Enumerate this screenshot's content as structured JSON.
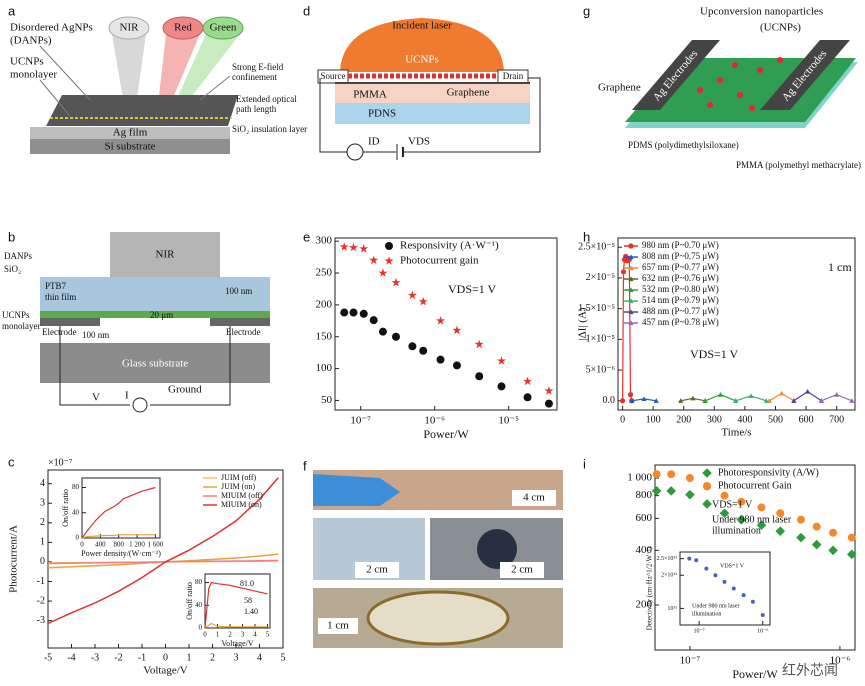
{
  "diagrams": {
    "a": {
      "label": "a",
      "texts": [
        "Disordered AgNPs",
        "(DANPs)",
        "UCNPs",
        "monolayer",
        "NIR",
        "Red",
        "Green",
        "Strong E-field",
        "confinement",
        "Extended optical",
        "path length",
        "SiO₂ insulation layer",
        "Ag film",
        "Si substrate"
      ]
    },
    "d": {
      "label": "d",
      "texts": [
        "Incident laser",
        "UCNPs",
        "Source",
        "Drain",
        "PMMA",
        "Graphene",
        "PDNS",
        "ID",
        "VDS"
      ]
    },
    "g": {
      "label": "g",
      "texts": [
        "Upconversion nanoparticles",
        "(UCNPs)",
        "Graphene",
        "Ag Electrodes",
        "Ag Electrodes",
        "PDMS (polydimethylsiloxane)",
        "PMMA (polymethyl methacrylate)"
      ]
    },
    "b": {
      "label": "b",
      "texts": [
        "NIR",
        "DANPs",
        "SiO₂",
        "PTB7",
        "thin film",
        "100 nm",
        "UCNPs",
        "monolayer",
        "20 μm",
        "Electrode",
        "100 nm",
        "Electrode",
        "Glass substrate",
        "Ground",
        "V",
        "I"
      ]
    },
    "f": {
      "label": "f",
      "texts": [
        "4 cm",
        "2 cm",
        "2 cm",
        "1 cm"
      ]
    }
  },
  "watermark": "红外芯闻",
  "chart_data": [
    {
      "type": "line",
      "label": "c",
      "xlabel": "Voltage/V",
      "ylabel": "Photocurrent/A",
      "y_offset_label": "×10⁻⁷",
      "xlim": [
        -5,
        5
      ],
      "xticks": [
        -5,
        -4,
        -3,
        -2,
        -1,
        0,
        1,
        2,
        3,
        4,
        5
      ],
      "ylim": [
        -4.4,
        4.7
      ],
      "yticks": [
        -3,
        -2,
        -1,
        0,
        1,
        2,
        3,
        4
      ],
      "legend": "upper right",
      "x": [
        -5,
        -4,
        -3,
        -2,
        -1,
        0,
        1,
        2,
        3,
        4,
        4.8
      ],
      "series": [
        {
          "name": "JUIM (off)",
          "color": "#f7c16b",
          "values": [
            -0.05,
            -0.04,
            -0.03,
            -0.02,
            -0.01,
            0,
            0.01,
            0.02,
            0.03,
            0.04,
            0.05
          ]
        },
        {
          "name": "JUIM (on)",
          "color": "#e8a33a",
          "values": [
            -0.3,
            -0.25,
            -0.2,
            -0.14,
            -0.07,
            0,
            0.06,
            0.13,
            0.2,
            0.3,
            0.4
          ]
        },
        {
          "name": "MIUIM (off)",
          "color": "#f08080",
          "values": [
            -0.08,
            -0.06,
            -0.05,
            -0.03,
            -0.02,
            0,
            0.02,
            0.03,
            0.05,
            0.06,
            0.08
          ]
        },
        {
          "name": "MIUIM (on)",
          "color": "#e03030",
          "values": [
            -3.15,
            -2.6,
            -2.1,
            -1.5,
            -0.8,
            0,
            0.6,
            1.3,
            2.1,
            3.2,
            4.3
          ]
        }
      ],
      "insets": [
        {
          "type": "line",
          "xlabel": "Power density/(W·cm⁻²)",
          "ylabel": "On/off ratio",
          "xlim": [
            0,
            1700
          ],
          "xticks": [
            0,
            400,
            800,
            {
              "value": 1200,
              "label": "1 200"
            },
            {
              "value": 1600,
              "label": "1 600"
            }
          ],
          "ylim": [
            0,
            95
          ],
          "yticks": [
            0,
            40,
            80
          ],
          "x": [
            0,
            100,
            300,
            500,
            700,
            800,
            900,
            1100,
            1300,
            1600
          ],
          "series": [
            {
              "color": "#e8a33a",
              "values": [
                0,
                2,
                3,
                4,
                4,
                5,
                5,
                5,
                5,
                5
              ]
            },
            {
              "color": "#e03030",
              "values": [
                0,
                10,
                28,
                42,
                50,
                55,
                62,
                68,
                74,
                80
              ]
            }
          ]
        },
        {
          "type": "line",
          "xlabel": "Voltage/V",
          "ylabel": "On/off ratio",
          "xlim": [
            0,
            5.2
          ],
          "xticks": [
            0,
            1,
            2,
            3,
            4,
            5
          ],
          "ylim": [
            0,
            95
          ],
          "yticks": [
            0,
            40,
            80
          ],
          "annotations": [
            "81.0",
            "58",
            "1.40"
          ],
          "x": [
            0,
            0.3,
            0.5,
            1,
            2,
            3,
            4,
            5
          ],
          "series": [
            {
              "color": "#e8a33a",
              "values": [
                0,
                5,
                8,
                3,
                2,
                2,
                2,
                2
              ]
            },
            {
              "color": "#e03030",
              "values": [
                0,
                70,
                80,
                78,
                75,
                70,
                65,
                60
              ]
            }
          ]
        }
      ]
    },
    {
      "type": "scatter",
      "label": "e",
      "xlabel": "Power/W",
      "xlog": true,
      "xlim": [
        4.5e-08,
        4.5e-05
      ],
      "xticks": [
        {
          "value": 1e-07,
          "label": "10⁻⁷"
        },
        {
          "value": 1e-06,
          "label": "10⁻⁶"
        },
        {
          "value": 1e-05,
          "label": "10⁻⁵"
        }
      ],
      "ylim": [
        35,
        305
      ],
      "yticks": [
        50,
        100,
        150,
        200,
        250,
        300
      ],
      "legend": "upper right",
      "annotations": [
        "VDS=1 V"
      ],
      "x": [
        6e-08,
        8e-08,
        1.1e-07,
        1.5e-07,
        2e-07,
        3e-07,
        5e-07,
        7e-07,
        1.2e-06,
        2e-06,
        4e-06,
        8e-06,
        1.8e-05,
        3.5e-05
      ],
      "series": [
        {
          "name": "Responsivity (A·W⁻¹)",
          "color": "#111111",
          "marker": "circle",
          "values": [
            188,
            188,
            186,
            176,
            158,
            150,
            135,
            128,
            114,
            105,
            88,
            72,
            55,
            45
          ]
        },
        {
          "name": "Photocurrent gain",
          "color": "#e8312f",
          "marker": "star",
          "values": [
            291,
            290,
            288,
            270,
            250,
            235,
            215,
            205,
            175,
            160,
            138,
            112,
            80,
            65
          ]
        }
      ]
    },
    {
      "type": "line",
      "label": "h",
      "xlabel": "Time/s",
      "ylabel": "|ΔI| (A)",
      "xlim": [
        -15,
        760
      ],
      "xticks": [
        0,
        100,
        200,
        300,
        400,
        500,
        600,
        700
      ],
      "ylim": [
        -1.5e-06,
        2.65e-05
      ],
      "yticks": [
        {
          "value": 0,
          "label": "0.0"
        },
        {
          "value": 5e-06,
          "label": "5×10⁻⁶"
        },
        {
          "value": 1e-05,
          "label": "1×10⁻⁵"
        },
        {
          "value": 1.5e-05,
          "label": "1.5×10⁻⁵"
        },
        {
          "value": 2e-05,
          "label": "2×10⁻⁵"
        },
        {
          "value": 2.5e-05,
          "label": "2.5×10⁻⁵"
        }
      ],
      "legend": "upper left",
      "annotations": [
        "VDS=1 V",
        "1 cm"
      ],
      "series": [
        {
          "name": "980 nm (P~0.70 μW)",
          "color": "#e8312f",
          "marker": "circle",
          "x": [
            0,
            3,
            6,
            10,
            14,
            18,
            22,
            26,
            30
          ],
          "values": [
            0,
            2.1e-05,
            2.3e-05,
            2.35e-05,
            2.28e-05,
            2.32e-05,
            2.3e-05,
            1e-06,
            0
          ]
        },
        {
          "name": "808 nm (P~0.75 μW)",
          "color": "#2b55c8",
          "marker": "triangle",
          "x": [
            30,
            70,
            110
          ],
          "values": [
            0,
            3e-07,
            0
          ]
        },
        {
          "name": "657 nm (P~0.77 μW)",
          "color": "#f28a2c",
          "marker": "triangle",
          "x": [
            480,
            520,
            560
          ],
          "values": [
            0,
            1.2e-06,
            0
          ]
        },
        {
          "name": "632 nm (P~0.76 μW)",
          "color": "#556b2f",
          "marker": "triangle",
          "x": [
            190,
            230,
            270
          ],
          "values": [
            0,
            4e-07,
            0
          ]
        },
        {
          "name": "532 nm (P~0.80 μW)",
          "color": "#2ca02c",
          "marker": "triangle",
          "x": [
            270,
            320,
            370
          ],
          "values": [
            0,
            1e-06,
            0
          ]
        },
        {
          "name": "514 nm (P~0.79 μW)",
          "color": "#3cb371",
          "marker": "triangle",
          "x": [
            370,
            420,
            470
          ],
          "values": [
            0,
            8e-07,
            0
          ]
        },
        {
          "name": "488 nm (P~0.77 μW)",
          "color": "#5a3fa0",
          "marker": "triangle",
          "x": [
            560,
            605,
            650
          ],
          "values": [
            0,
            1.5e-06,
            0
          ]
        },
        {
          "name": "457 nm (P~0.78 μW)",
          "color": "#9467bd",
          "marker": "triangle",
          "x": [
            650,
            700,
            750
          ],
          "values": [
            0,
            1e-06,
            0
          ]
        }
      ]
    },
    {
      "type": "scatter",
      "label": "i",
      "xlabel": "Power/W",
      "xlog": true,
      "ylog": true,
      "xlim": [
        5.85e-08,
        1.26e-06
      ],
      "xticks": [
        {
          "value": 1e-07,
          "label": "10⁻⁷"
        },
        {
          "value": 1e-06,
          "label": "10⁻⁶"
        }
      ],
      "ylim": [
        113,
        1180
      ],
      "yticks": [
        200,
        400,
        600,
        800,
        {
          "value": 1000,
          "label": "1 000"
        }
      ],
      "legend": "upper right",
      "annotations": [
        "VDS=1 V",
        "Under 980 nm laser",
        "illumination"
      ],
      "x": [
        6e-08,
        7.5e-08,
        1e-07,
        1.3e-07,
        1.7e-07,
        2.2e-07,
        3e-07,
        4e-07,
        5.5e-07,
        7e-07,
        9e-07,
        1.2e-06
      ],
      "series": [
        {
          "name": "Photoresponsivity (A/W)",
          "color": "#2e9a3e",
          "marker": "diamond",
          "values": [
            850,
            850,
            810,
            720,
            640,
            590,
            550,
            510,
            470,
            430,
            400,
            380
          ]
        },
        {
          "name": "Photocurrent Gain",
          "color": "#f28a2c",
          "marker": "circle",
          "values": [
            1050,
            1050,
            1000,
            900,
            800,
            740,
            690,
            640,
            590,
            540,
            500,
            470
          ]
        }
      ],
      "insets": [
        {
          "type": "scatter",
          "xlog": true,
          "ylabel": "Detectivity (cm·Hz^1/2·W⁻¹)",
          "xlim": [
            5e-08,
            1.3e-06
          ],
          "xticks": [
            {
              "value": 1e-07,
              "label": "10⁻⁷"
            },
            {
              "value": 1e-06,
              "label": "10⁻⁶"
            }
          ],
          "ylim": [
            50000000000.0,
            270000000000.0
          ],
          "yticks": [
            {
              "value": 100000000000.0,
              "label": "10¹¹"
            },
            {
              "value": 200000000000.0,
              "label": "2×10¹¹"
            },
            {
              "value": 250000000000.0,
              "label": "2.5×10¹¹"
            }
          ],
          "annotations": [
            "VDS=1 V",
            "Under 980 nm laser",
            "illumination"
          ],
          "x": [
            7e-08,
            9e-08,
            1.3e-07,
            1.8e-07,
            2.5e-07,
            3.5e-07,
            5e-07,
            7e-07,
            1e-06
          ],
          "series": [
            {
              "color": "#4a5fc1",
              "marker": "circle",
              "values": [
                250000000000.0,
                245000000000.0,
                220000000000.0,
                200000000000.0,
                180000000000.0,
                160000000000.0,
                140000000000.0,
                120000000000.0,
                80000000000.0
              ]
            }
          ]
        }
      ]
    }
  ]
}
